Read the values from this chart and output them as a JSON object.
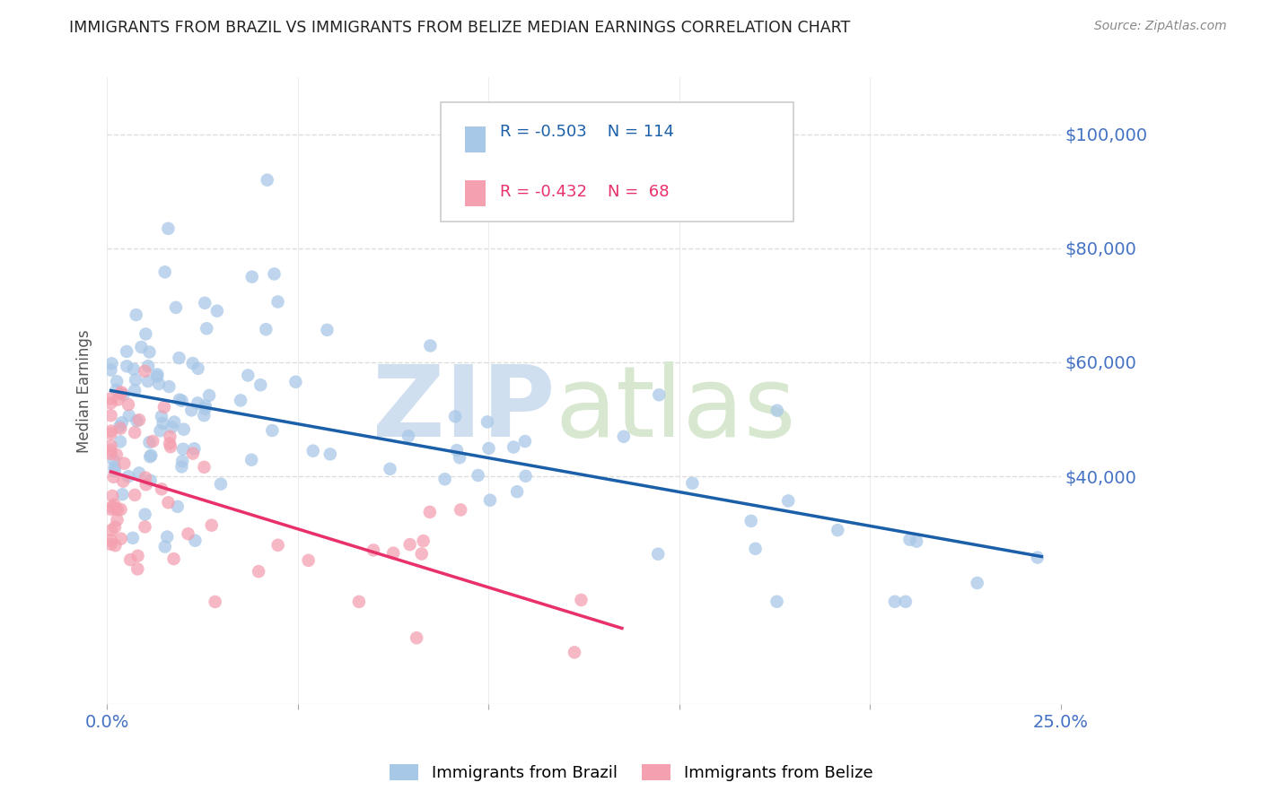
{
  "title": "IMMIGRANTS FROM BRAZIL VS IMMIGRANTS FROM BELIZE MEDIAN EARNINGS CORRELATION CHART",
  "source": "Source: ZipAtlas.com",
  "ylabel": "Median Earnings",
  "xlim": [
    0.0,
    0.25
  ],
  "ylim": [
    0,
    110000
  ],
  "yticks": [
    40000,
    60000,
    80000,
    100000
  ],
  "ytick_labels": [
    "$40,000",
    "$60,000",
    "$80,000",
    "$100,000"
  ],
  "xticks": [
    0.0,
    0.05,
    0.1,
    0.15,
    0.2,
    0.25
  ],
  "xtick_labels": [
    "0.0%",
    "",
    "",
    "",
    "",
    "25.0%"
  ],
  "brazil_R": -0.503,
  "brazil_N": 114,
  "belize_R": -0.432,
  "belize_N": 68,
  "brazil_color": "#a8c8e8",
  "belize_color": "#f4a0b0",
  "brazil_line_color": "#1a5fa8",
  "belize_line_color": "#e8306a",
  "watermark_zip_color": "#d0dff0",
  "watermark_atlas_color": "#d8e8d0",
  "background_color": "#ffffff",
  "grid_color": "#dddddd",
  "axis_label_color": "#4472c4",
  "title_color": "#222222",
  "legend_box_color": "#f8f8f8",
  "legend_border_color": "#cccccc",
  "source_color": "#888888"
}
